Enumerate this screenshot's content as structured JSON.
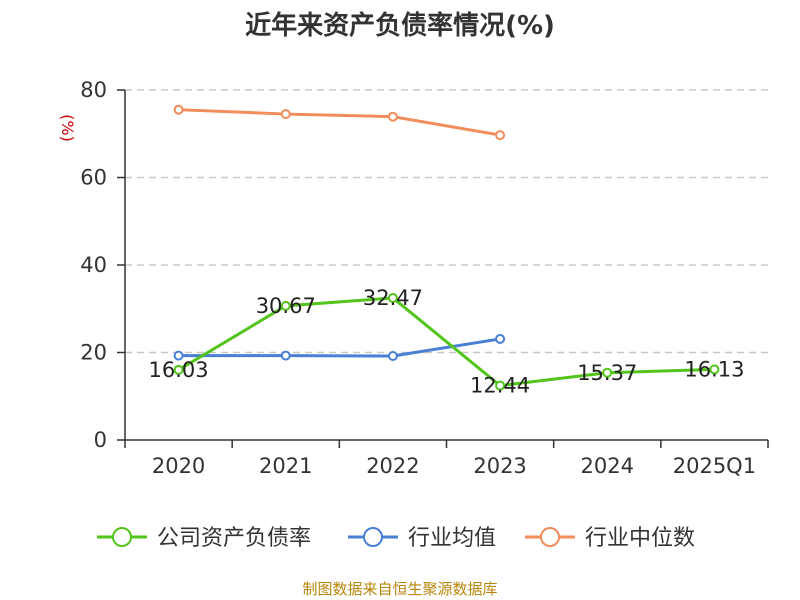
{
  "chart_data": {
    "type": "line",
    "title": "近年来资产负债率情况(%)",
    "ylabel": "(%)",
    "xlabel": "",
    "categories": [
      "2020",
      "2021",
      "2022",
      "2023",
      "2024",
      "2025Q1"
    ],
    "ylim": [
      0,
      80
    ],
    "yticks": [
      0,
      20,
      40,
      60,
      80
    ],
    "grid": true,
    "legend_position": "bottom",
    "series": [
      {
        "name": "公司资产负债率",
        "color": "#52c41a",
        "values": [
          16.03,
          30.67,
          32.47,
          12.44,
          15.37,
          16.13
        ],
        "labels": [
          "16.03",
          "30.67",
          "32.47",
          "12.44",
          "15.37",
          "16.13"
        ]
      },
      {
        "name": "行业均值",
        "color": "#4a7fd6",
        "values": [
          19.3,
          19.3,
          19.2,
          23.1,
          null,
          null
        ]
      },
      {
        "name": "行业中位数",
        "color": "#f28c5a",
        "values": [
          75.5,
          74.5,
          73.9,
          69.7,
          null,
          null
        ]
      }
    ],
    "source": "制图数据来自恒生聚源数据库"
  }
}
